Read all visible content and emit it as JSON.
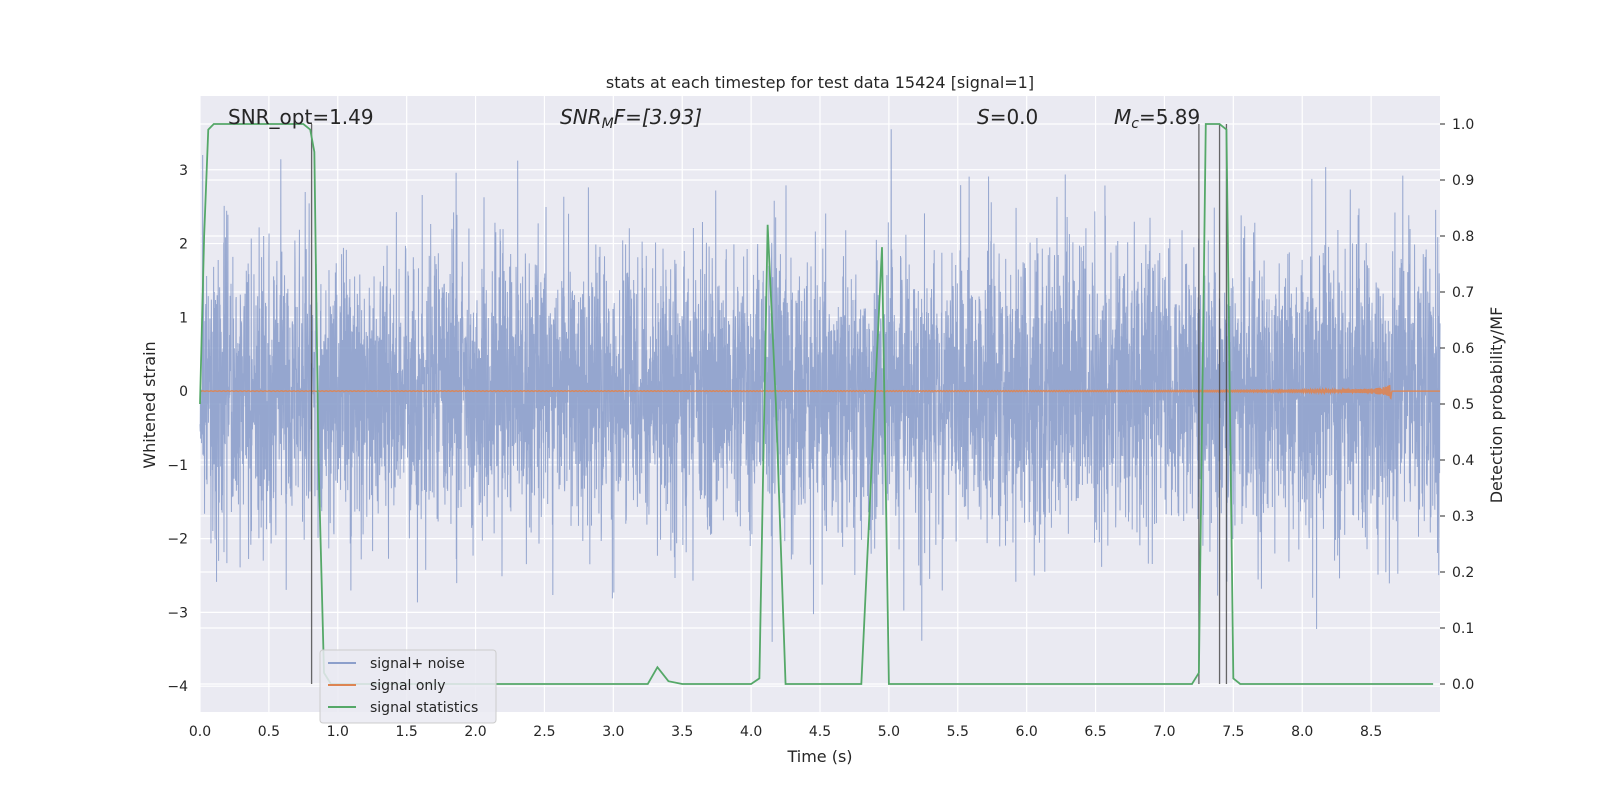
{
  "chart_data": {
    "type": "line",
    "title": "stats at each timestep for test data 15424 [signal=1]",
    "xlabel": "Time (s)",
    "ylabel": "Whitened strain",
    "ylabel_right": "Detection probability/MF",
    "xlim": [
      0,
      9.0
    ],
    "ylim": [
      -4.35,
      4.0
    ],
    "ylim_right": [
      -0.05,
      1.05
    ],
    "x_ticks": [
      0.0,
      0.5,
      1.0,
      1.5,
      2.0,
      2.5,
      3.0,
      3.5,
      4.0,
      4.5,
      5.0,
      5.5,
      6.0,
      6.5,
      7.0,
      7.5,
      8.0,
      8.5
    ],
    "x_tick_labels": [
      "0.0",
      "0.5",
      "1.0",
      "1.5",
      "2.0",
      "2.5",
      "3.0",
      "3.5",
      "4.0",
      "4.5",
      "5.0",
      "5.5",
      "6.0",
      "6.5",
      "7.0",
      "7.5",
      "8.0",
      "8.5"
    ],
    "y_ticks": [
      -4,
      -3,
      -2,
      -1,
      0,
      1,
      2,
      3
    ],
    "y_tick_labels": [
      "−4",
      "−3",
      "−2",
      "−1",
      "0",
      "1",
      "2",
      "3"
    ],
    "y_ticks_right": [
      0.0,
      0.1,
      0.2,
      0.3,
      0.4,
      0.5,
      0.6,
      0.7,
      0.8,
      0.9,
      1.0
    ],
    "y_tick_labels_right": [
      "0.0",
      "0.1",
      "0.2",
      "0.3",
      "0.4",
      "0.5",
      "0.6",
      "0.7",
      "0.8",
      "0.9",
      "1.0"
    ],
    "grid": true,
    "legend_position": "bottom-left",
    "annotations": {
      "snr_opt": "SNR_opt=1.49",
      "snr_mf": "SNRMF=[3.93]",
      "snr_mf_main": "SNR",
      "snr_mf_sub": "M",
      "snr_mf_rest": "F=[3.93]",
      "s": "S=0.0",
      "s_main": "S",
      "s_rest": "=0.0",
      "mc": "Mc=5.89",
      "mc_main": "M",
      "mc_sub": "c",
      "mc_rest": "=5.89"
    },
    "series": [
      {
        "name": "signal+ noise",
        "color": "#8c9fcb",
        "kind": "noise",
        "amplitude_std": 0.95,
        "min": -3.4,
        "max": 3.55
      },
      {
        "name": "signal only",
        "color": "#dd8452",
        "kind": "chirp",
        "end_time": 8.65,
        "peak_amplitude": 0.2
      },
      {
        "name": "signal statistics",
        "color": "#55a868",
        "axis": "right",
        "x": [
          0.0,
          0.03,
          0.06,
          0.1,
          0.15,
          0.2,
          0.3,
          0.4,
          0.5,
          0.6,
          0.7,
          0.75,
          0.8,
          0.83,
          0.86,
          0.9,
          0.95,
          1.0,
          1.5,
          2.0,
          2.5,
          3.0,
          3.25,
          3.32,
          3.4,
          3.5,
          4.0,
          4.06,
          4.12,
          4.18,
          4.25,
          4.5,
          4.8,
          4.95,
          5.0,
          5.5,
          6.0,
          6.5,
          7.0,
          7.2,
          7.25,
          7.3,
          7.4,
          7.45,
          7.5,
          7.55,
          8.0,
          8.5,
          8.95
        ],
        "y": [
          0.5,
          0.8,
          0.99,
          1.0,
          1.0,
          1.0,
          1.0,
          1.0,
          1.0,
          1.0,
          1.0,
          1.0,
          0.99,
          0.95,
          0.4,
          0.02,
          0.0,
          0.0,
          0.0,
          0.0,
          0.0,
          0.0,
          0.0,
          0.03,
          0.005,
          0.0,
          0.0,
          0.01,
          0.82,
          0.5,
          0.0,
          0.0,
          0.0,
          0.78,
          0.0,
          0.0,
          0.0,
          0.0,
          0.0,
          0.0,
          0.02,
          1.0,
          1.0,
          0.99,
          0.01,
          0.0,
          0.0,
          0.0,
          0.0
        ]
      }
    ],
    "vertical_lines": [
      0.81,
      7.25,
      7.4,
      7.45
    ]
  }
}
